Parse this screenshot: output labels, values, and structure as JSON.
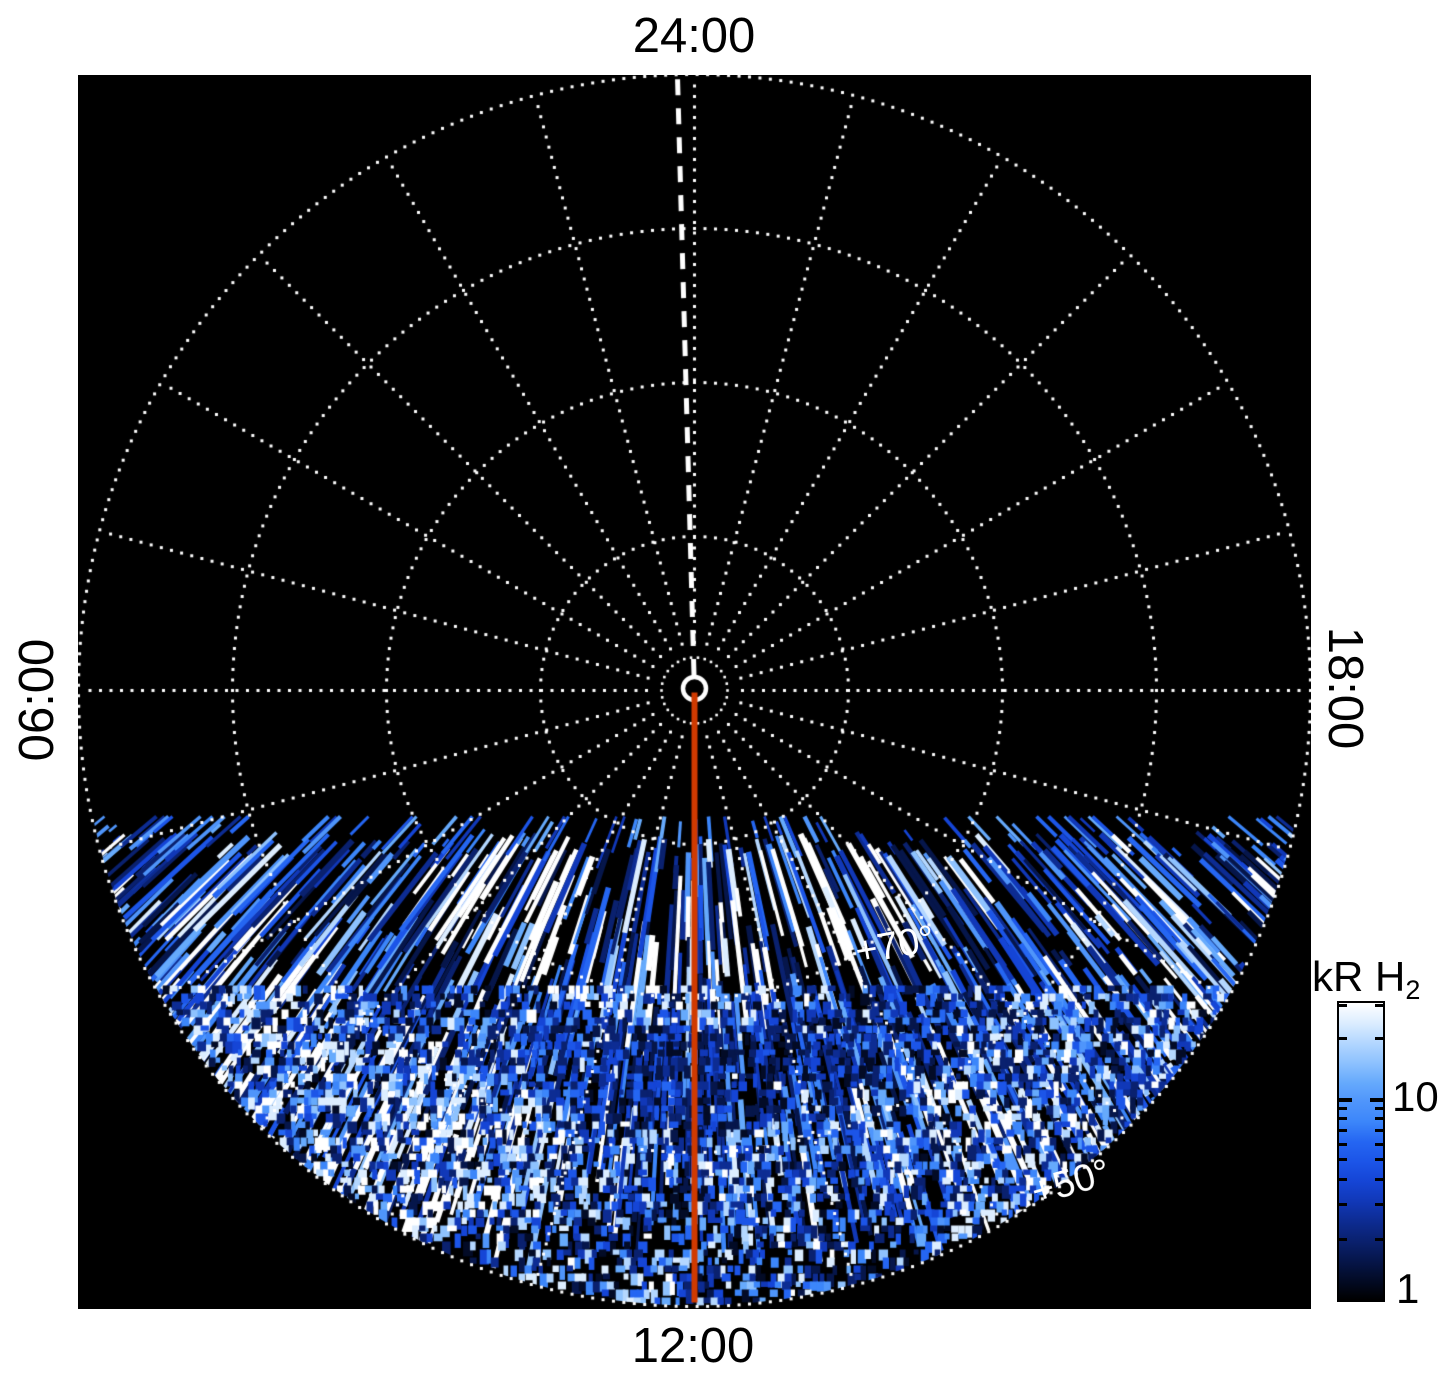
{
  "labels": {
    "top": "24:00",
    "bottom": "12:00",
    "left": "06:00",
    "right": "18:00"
  },
  "annotations": {
    "lat70": "+70°",
    "lat50": "+50°"
  },
  "colorbar_display": {
    "title_main": "kR H",
    "title_sub": "2",
    "tick10": "10",
    "tick1": "1"
  },
  "colors": {
    "page_background": "#ffffff",
    "plot_background": "#000000",
    "grid": "#ffffff",
    "noon_line": "#d03a00",
    "label_text": "#000000",
    "annotation_text": "#ffffff"
  },
  "chart_data": {
    "type": "heatmap",
    "projection": "polar",
    "description": "Polar map of H2 auroral emission versus local time and latitude; patchy blue-scale emission fills the dayside (12:00) sector of the map below about +78 degrees latitude, brightest in streaks near +70 to +75 degrees.",
    "orientation": {
      "top": "24:00",
      "left": "06:00",
      "bottom": "12:00",
      "right": "18:00"
    },
    "hour_line_spacing_deg": 15,
    "latitude_circles": [
      {
        "latitude": "+80°",
        "radius_fraction": 0.25,
        "labeled": false
      },
      {
        "latitude": "+70°",
        "radius_fraction": 0.5,
        "labeled": true
      },
      {
        "latitude": "+60°",
        "radius_fraction": 0.75,
        "labeled": false
      },
      {
        "latitude": "+50°",
        "radius_fraction": 1.0,
        "labeled": true
      }
    ],
    "overlays": [
      {
        "name": "noon meridian line",
        "style": "solid",
        "color": "#d03a00",
        "from": "pole",
        "to": "12:00 edge"
      },
      {
        "name": "midnight meridian line",
        "style": "dashed",
        "color": "#ffffff",
        "from": "pole",
        "to": "24:00 edge"
      },
      {
        "name": "pole marker ring",
        "style": "ring",
        "color": "#ffffff"
      }
    ],
    "emission_region": {
      "coverage": "below horizontal terminator ~+78° toward 12:00, out to +50° circle",
      "value_range_kR": [
        1,
        30
      ]
    },
    "colorbar": {
      "title": "kR H2",
      "scale": "log",
      "min": 1,
      "max": 30,
      "labeled_ticks": [
        1,
        10
      ],
      "minor_ticks": [
        2,
        3,
        4,
        5,
        6,
        7,
        8,
        9,
        20,
        30
      ],
      "palette": [
        "#000000",
        "#030b26",
        "#06164b",
        "#0a216f",
        "#0d2c93",
        "#1138b8",
        "#1545d6",
        "#1c55e8",
        "#2566f2",
        "#3c86fa",
        "#4f95fb",
        "#66aafc",
        "#8ec2fe",
        "#b4d7ff",
        "#dcedff",
        "#ffffff"
      ]
    }
  }
}
